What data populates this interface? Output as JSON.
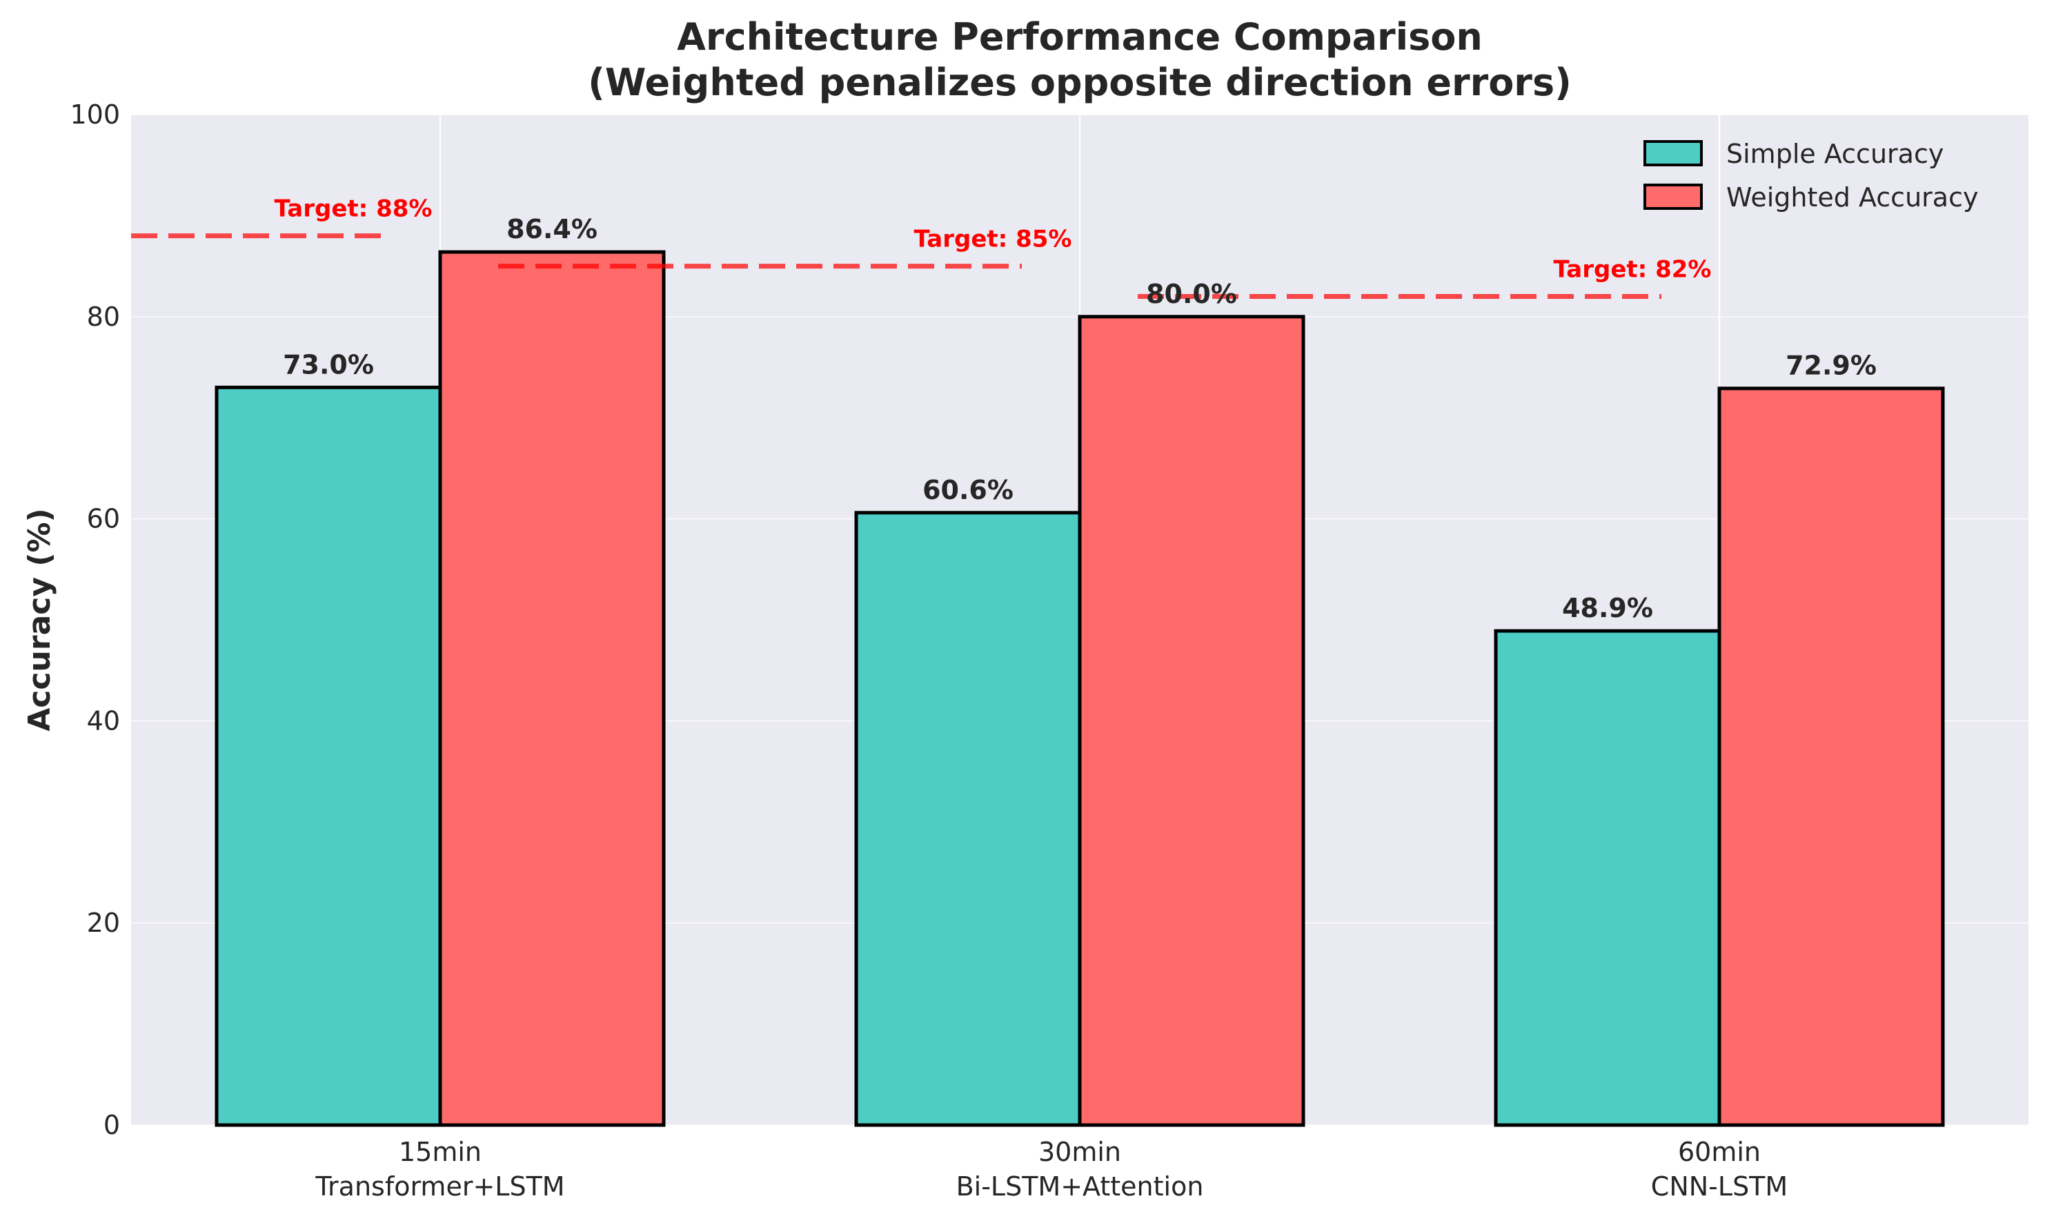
{
  "chart_data": {
    "type": "bar",
    "title_lines": [
      "Architecture Performance Comparison",
      "(Weighted penalizes opposite direction errors)"
    ],
    "ylabel": "Accuracy (%)",
    "ylim": [
      0,
      100
    ],
    "yticks": [
      0,
      20,
      40,
      60,
      80,
      100
    ],
    "grid": true,
    "legend_placement": "top-right",
    "categories": [
      {
        "line1": "15min",
        "line2": "Transformer+LSTM"
      },
      {
        "line1": "30min",
        "line2": "Bi-LSTM+Attention"
      },
      {
        "line1": "60min",
        "line2": "CNN-LSTM"
      }
    ],
    "series": [
      {
        "name": "Simple Accuracy",
        "color": "#4ecdc4",
        "values": [
          73.0,
          60.6,
          48.9
        ],
        "labels": [
          "73.0%",
          "60.6%",
          "48.9%"
        ]
      },
      {
        "name": "Weighted Accuracy",
        "color": "#ff6b6b",
        "values": [
          86.4,
          80.0,
          72.9
        ],
        "labels": [
          "86.4%",
          "80.0%",
          "72.9%"
        ]
      }
    ],
    "targets": [
      {
        "value": 88,
        "label": "Target: 88%"
      },
      {
        "value": 85,
        "label": "Target: 85%"
      },
      {
        "value": 82,
        "label": "Target: 82%"
      }
    ],
    "target_color": "#ff0000"
  }
}
